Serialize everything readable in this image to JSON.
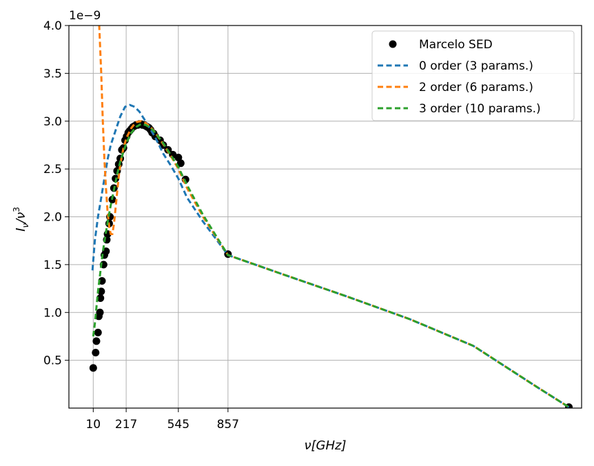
{
  "chart_data": {
    "type": "line",
    "title": "",
    "xlabel": "ν[GHz]",
    "ylabel": "Iν/ν³",
    "ylabel_parts": {
      "main": "I",
      "sub": "ν",
      "sep": "/ν",
      "sup": "3"
    },
    "y_offset_text": "1e−9",
    "xlim": [
      -143,
      3080
    ],
    "ylim": [
      0,
      4.0
    ],
    "x_ticks": [
      10,
      217,
      545,
      857
    ],
    "x_tick_labels": [
      "10",
      "217",
      "545",
      "857"
    ],
    "y_ticks": [
      0.5,
      1.0,
      1.5,
      2.0,
      2.5,
      3.0,
      3.5,
      4.0
    ],
    "y_tick_labels": [
      "0.5",
      "1.0",
      "1.5",
      "2.0",
      "2.5",
      "3.0",
      "3.5",
      "4.0"
    ],
    "grid": true,
    "legend_position": "top-right",
    "series": [
      {
        "name": "Marcelo SED",
        "style": "markers",
        "color": "#000000",
        "x": [
          10,
          25,
          30,
          40,
          45,
          52,
          55,
          60,
          65,
          75,
          80,
          90,
          95,
          100,
          110,
          115,
          130,
          140,
          150,
          160,
          170,
          180,
          190,
          200,
          210,
          220,
          230,
          240,
          250,
          260,
          270,
          280,
          290,
          300,
          310,
          320,
          330,
          340,
          350,
          360,
          370,
          380,
          390,
          400,
          430,
          450,
          480,
          510,
          545,
          560,
          590,
          857,
          3000
        ],
        "y": [
          0.42,
          0.58,
          0.7,
          0.79,
          0.96,
          1.0,
          1.15,
          1.22,
          1.33,
          1.5,
          1.6,
          1.64,
          1.76,
          1.82,
          1.93,
          2.0,
          2.18,
          2.3,
          2.4,
          2.48,
          2.55,
          2.61,
          2.7,
          2.72,
          2.8,
          2.84,
          2.88,
          2.9,
          2.92,
          2.94,
          2.95,
          2.96,
          2.96,
          2.97,
          2.97,
          2.96,
          2.96,
          2.95,
          2.94,
          2.93,
          2.91,
          2.88,
          2.87,
          2.84,
          2.8,
          2.75,
          2.7,
          2.65,
          2.62,
          2.56,
          2.39,
          1.61,
          0.01
        ]
      },
      {
        "name": "0 order (3 params.)",
        "style": "dashed",
        "color": "#1f77b4",
        "x": [
          5,
          20,
          40,
          60,
          80,
          100,
          120,
          150,
          180,
          210,
          240,
          270,
          300,
          350,
          400,
          450,
          500,
          545,
          600,
          700,
          857,
          1200,
          1600,
          2000,
          2400,
          2800,
          3000
        ],
        "y": [
          1.44,
          1.75,
          2.0,
          2.2,
          2.4,
          2.6,
          2.75,
          2.9,
          3.05,
          3.15,
          3.17,
          3.15,
          3.1,
          2.97,
          2.83,
          2.66,
          2.53,
          2.4,
          2.2,
          1.95,
          1.6,
          1.4,
          1.17,
          0.93,
          0.65,
          0.22,
          0.01
        ]
      },
      {
        "name": "2 order (6 params.)",
        "style": "dashed",
        "color": "#ff7f0e",
        "x": [
          45,
          60,
          70,
          80,
          90,
          100,
          110,
          120,
          130,
          140,
          150,
          160,
          170,
          180,
          200,
          220,
          250,
          280,
          310,
          340,
          370,
          400,
          450,
          500,
          545,
          600,
          700,
          857,
          1200,
          1600,
          2000,
          2400,
          2800,
          3000
        ],
        "y": [
          4.1,
          3.5,
          3.0,
          2.6,
          2.3,
          2.05,
          1.9,
          1.82,
          1.82,
          1.92,
          2.08,
          2.25,
          2.42,
          2.55,
          2.72,
          2.83,
          2.93,
          2.99,
          3.0,
          2.98,
          2.94,
          2.88,
          2.76,
          2.63,
          2.5,
          2.3,
          2.0,
          1.6,
          1.4,
          1.17,
          0.93,
          0.65,
          0.22,
          0.01
        ]
      },
      {
        "name": "3 order (10 params.)",
        "style": "dashed",
        "color": "#2ca02c",
        "x": [
          10,
          20,
          30,
          40,
          50,
          60,
          70,
          80,
          90,
          100,
          110,
          120,
          130,
          140,
          150,
          160,
          170,
          180,
          200,
          220,
          250,
          280,
          310,
          340,
          370,
          400,
          450,
          500,
          545,
          600,
          700,
          857,
          1200,
          1600,
          2000,
          2400,
          2800,
          3000
        ],
        "y": [
          0.75,
          0.88,
          1.05,
          1.22,
          1.36,
          1.5,
          1.63,
          1.74,
          1.84,
          1.94,
          2.03,
          2.12,
          2.2,
          2.28,
          2.36,
          2.44,
          2.51,
          2.58,
          2.68,
          2.78,
          2.88,
          2.94,
          2.97,
          2.96,
          2.93,
          2.88,
          2.77,
          2.64,
          2.52,
          2.33,
          2.02,
          1.6,
          1.4,
          1.17,
          0.93,
          0.65,
          0.22,
          0.01
        ]
      }
    ]
  }
}
